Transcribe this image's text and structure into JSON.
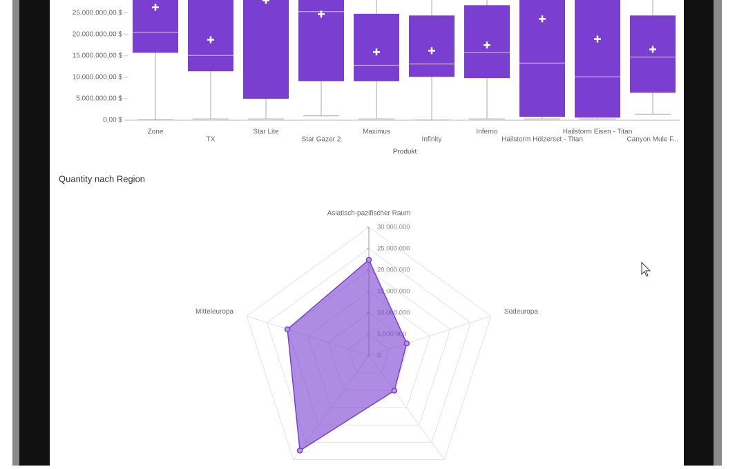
{
  "chart_data": [
    {
      "type": "box",
      "categories": [
        "Zone",
        "TX",
        "Star Lite",
        "Star Gazer 2",
        "Maximus",
        "Infinity",
        "Inferno",
        "Hailstorm Hölzerset - Titan",
        "Hailstorm Eisen - Titan",
        "Canyon Mule F..."
      ],
      "min": [
        100000,
        300000,
        300000,
        1000000,
        300000,
        50000,
        300000,
        300000,
        300000,
        1400000
      ],
      "q1": [
        15700000,
        11400000,
        5000000,
        9100000,
        9100000,
        10100000,
        9800000,
        800000,
        600000,
        6400000
      ],
      "median": [
        20500000,
        15100000,
        null,
        25300000,
        12800000,
        13100000,
        15700000,
        13300000,
        10100000,
        14700000
      ],
      "q3": [
        null,
        null,
        null,
        null,
        24800000,
        24400000,
        26800000,
        null,
        null,
        24400000
      ],
      "max": [
        null,
        null,
        null,
        null,
        null,
        null,
        null,
        null,
        null,
        null
      ],
      "mean": [
        26300000,
        18750000,
        27900000,
        24700000,
        15900000,
        16200000,
        17500000,
        23600000,
        18900000,
        16500000
      ],
      "color": "#7a3fd0",
      "x_label": "Produkt",
      "ylim": [
        0,
        28000000
      ],
      "yticks": [
        {
          "value": 0,
          "label": "0,00 $"
        },
        {
          "value": 5000000,
          "label": "5.000.000,00 $"
        },
        {
          "value": 10000000,
          "label": "10.000.000,00 $"
        },
        {
          "value": 15000000,
          "label": "15.000.000,00 $"
        },
        {
          "value": 20000000,
          "label": "20.000.000,00 $"
        },
        {
          "value": 25000000,
          "label": "25.000.000,00 $"
        }
      ]
    },
    {
      "type": "radar",
      "title": "Quantity nach Region",
      "categories": [
        "Asiatisch-pazifischer Raum",
        "Südeuropa",
        null,
        null,
        "Mitteleuropa"
      ],
      "values": [
        22400000,
        9300000,
        10100000,
        27400000,
        20000000
      ],
      "color": "#7a3fd0",
      "rlim": [
        0,
        30000000
      ],
      "rticks": [
        0,
        {
          "value": 5000000,
          "label": "5.000.000"
        },
        {
          "value": 10000000,
          "label": "10.000.000"
        },
        {
          "value": 15000000,
          "label": "15.000.000"
        },
        {
          "value": 20000000,
          "label": "20.000.000"
        },
        {
          "value": 25000000,
          "label": "25.000.000"
        },
        {
          "value": 30000000,
          "label": "30.000.000"
        }
      ]
    }
  ]
}
